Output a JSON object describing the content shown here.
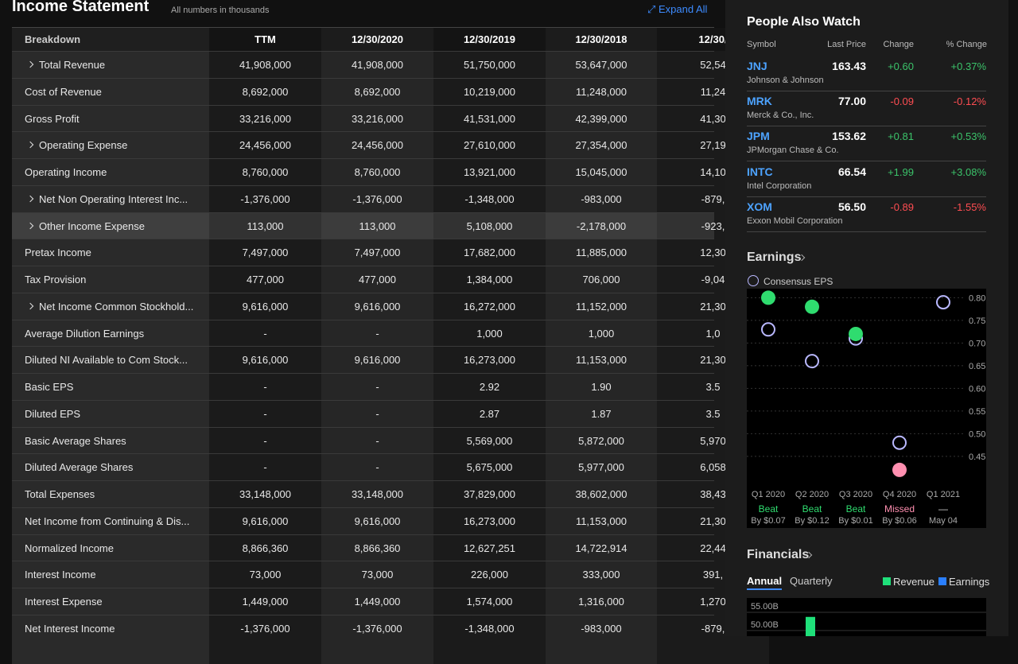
{
  "header": {
    "title": "Income Statement",
    "note": "All numbers in thousands",
    "expand": "Expand All"
  },
  "table": {
    "columns": [
      "Breakdown",
      "TTM",
      "12/30/2020",
      "12/30/2019",
      "12/30/2018",
      "12/30/"
    ],
    "rows": [
      {
        "label": "Total Revenue",
        "expandable": true,
        "values": [
          "41,908,000",
          "41,908,000",
          "51,750,000",
          "53,647,000",
          "52,54"
        ]
      },
      {
        "label": "Cost of Revenue",
        "values": [
          "8,692,000",
          "8,692,000",
          "10,219,000",
          "11,248,000",
          "11,24"
        ]
      },
      {
        "label": "Gross Profit",
        "values": [
          "33,216,000",
          "33,216,000",
          "41,531,000",
          "42,399,000",
          "41,30"
        ]
      },
      {
        "label": "Operating Expense",
        "expandable": true,
        "values": [
          "24,456,000",
          "24,456,000",
          "27,610,000",
          "27,354,000",
          "27,19"
        ]
      },
      {
        "label": "Operating Income",
        "values": [
          "8,760,000",
          "8,760,000",
          "13,921,000",
          "15,045,000",
          "14,10"
        ]
      },
      {
        "label": "Net Non Operating Interest Inc...",
        "expandable": true,
        "values": [
          "-1,376,000",
          "-1,376,000",
          "-1,348,000",
          "-983,000",
          "-879,"
        ]
      },
      {
        "label": "Other Income Expense",
        "expandable": true,
        "highlighted": true,
        "values": [
          "113,000",
          "113,000",
          "5,108,000",
          "-2,178,000",
          "-923,"
        ]
      },
      {
        "label": "Pretax Income",
        "values": [
          "7,497,000",
          "7,497,000",
          "17,682,000",
          "11,885,000",
          "12,30"
        ]
      },
      {
        "label": "Tax Provision",
        "values": [
          "477,000",
          "477,000",
          "1,384,000",
          "706,000",
          "-9,04"
        ]
      },
      {
        "label": "Net Income Common Stockhold...",
        "expandable": true,
        "values": [
          "9,616,000",
          "9,616,000",
          "16,272,000",
          "11,152,000",
          "21,30"
        ]
      },
      {
        "label": "Average Dilution Earnings",
        "values": [
          "-",
          "-",
          "1,000",
          "1,000",
          "1,0"
        ]
      },
      {
        "label": "Diluted NI Available to Com Stock...",
        "values": [
          "9,616,000",
          "9,616,000",
          "16,273,000",
          "11,153,000",
          "21,30"
        ]
      },
      {
        "label": "Basic EPS",
        "values": [
          "-",
          "-",
          "2.92",
          "1.90",
          "3.5"
        ]
      },
      {
        "label": "Diluted EPS",
        "values": [
          "-",
          "-",
          "2.87",
          "1.87",
          "3.5"
        ]
      },
      {
        "label": "Basic Average Shares",
        "values": [
          "-",
          "-",
          "5,569,000",
          "5,872,000",
          "5,970"
        ]
      },
      {
        "label": "Diluted Average Shares",
        "values": [
          "-",
          "-",
          "5,675,000",
          "5,977,000",
          "6,058"
        ]
      },
      {
        "label": "Total Expenses",
        "values": [
          "33,148,000",
          "33,148,000",
          "37,829,000",
          "38,602,000",
          "38,43"
        ]
      },
      {
        "label": "Net Income from Continuing & Dis...",
        "values": [
          "9,616,000",
          "9,616,000",
          "16,273,000",
          "11,153,000",
          "21,30"
        ]
      },
      {
        "label": "Normalized Income",
        "values": [
          "8,866,360",
          "8,866,360",
          "12,627,251",
          "14,722,914",
          "22,44"
        ]
      },
      {
        "label": "Interest Income",
        "values": [
          "73,000",
          "73,000",
          "226,000",
          "333,000",
          "391,"
        ]
      },
      {
        "label": "Interest Expense",
        "values": [
          "1,449,000",
          "1,449,000",
          "1,574,000",
          "1,316,000",
          "1,270"
        ]
      },
      {
        "label": "Net Interest Income",
        "values": [
          "-1,376,000",
          "-1,376,000",
          "-1,348,000",
          "-983,000",
          "-879,"
        ]
      }
    ]
  },
  "watch": {
    "title": "People Also Watch",
    "columns": [
      "Symbol",
      "Last Price",
      "Change",
      "% Change"
    ],
    "up_color": "#3bc36a",
    "down_color": "#ff4d52",
    "rows": [
      {
        "symbol": "JNJ",
        "name": "Johnson & Johnson",
        "price": "163.43",
        "change": "+0.60",
        "pct": "+0.37%"
      },
      {
        "symbol": "MRK",
        "name": "Merck & Co., Inc.",
        "price": "77.00",
        "change": "-0.09",
        "pct": "-0.12%"
      },
      {
        "symbol": "JPM",
        "name": "JPMorgan Chase & Co.",
        "price": "153.62",
        "change": "+0.81",
        "pct": "+0.53%"
      },
      {
        "symbol": "INTC",
        "name": "Intel Corporation",
        "price": "66.54",
        "change": "+1.99",
        "pct": "+3.08%"
      },
      {
        "symbol": "XOM",
        "name": "Exxon Mobil Corporation",
        "price": "56.50",
        "change": "-0.89",
        "pct": "-1.55%"
      }
    ]
  },
  "earnings": {
    "type": "scatter",
    "title": "Earnings",
    "legend": "Consensus EPS",
    "categories": [
      "Q1 2020",
      "Q2 2020",
      "Q3 2020",
      "Q4 2020",
      "Q1 2021"
    ],
    "estimate": [
      0.73,
      0.66,
      0.71,
      0.48,
      0.79
    ],
    "actual": [
      0.8,
      0.78,
      0.72,
      0.42,
      null
    ],
    "status": [
      "Beat",
      "Beat",
      "Beat",
      "Missed",
      "—"
    ],
    "detail": [
      "By $0.07",
      "By $0.12",
      "By $0.01",
      "By $0.06",
      "May 04"
    ],
    "status_colors": [
      "#2fdc6f",
      "#2fdc6f",
      "#2fdc6f",
      "#ff8fb0",
      "#cccccc"
    ],
    "estimate_color": "#b9b8ff",
    "ylim": [
      0.39,
      0.82
    ],
    "yticks": [
      {
        "value": 0.8,
        "label": "0.80"
      },
      {
        "value": 0.75,
        "label": "0.75"
      },
      {
        "value": 0.7,
        "label": "0.70"
      },
      {
        "value": 0.65,
        "label": "0.65"
      },
      {
        "value": 0.6,
        "label": "0.60"
      },
      {
        "value": 0.55,
        "label": "0.55"
      },
      {
        "value": 0.5,
        "label": "0.50"
      },
      {
        "value": 0.45,
        "label": "0.45"
      }
    ]
  },
  "financials": {
    "type": "bar",
    "title": "Financials",
    "tabs": [
      "Annual",
      "Quarterly"
    ],
    "legend": [
      {
        "name": "Revenue",
        "color": "#1fe07a"
      },
      {
        "name": "Earnings",
        "color": "#2a7fff"
      }
    ],
    "revenue": [
      52
    ],
    "ylim": [
      46.7,
      57.2
    ],
    "yticks": [
      {
        "value": 55,
        "label": "55.00B"
      },
      {
        "value": 50,
        "label": "50.00B"
      }
    ]
  }
}
